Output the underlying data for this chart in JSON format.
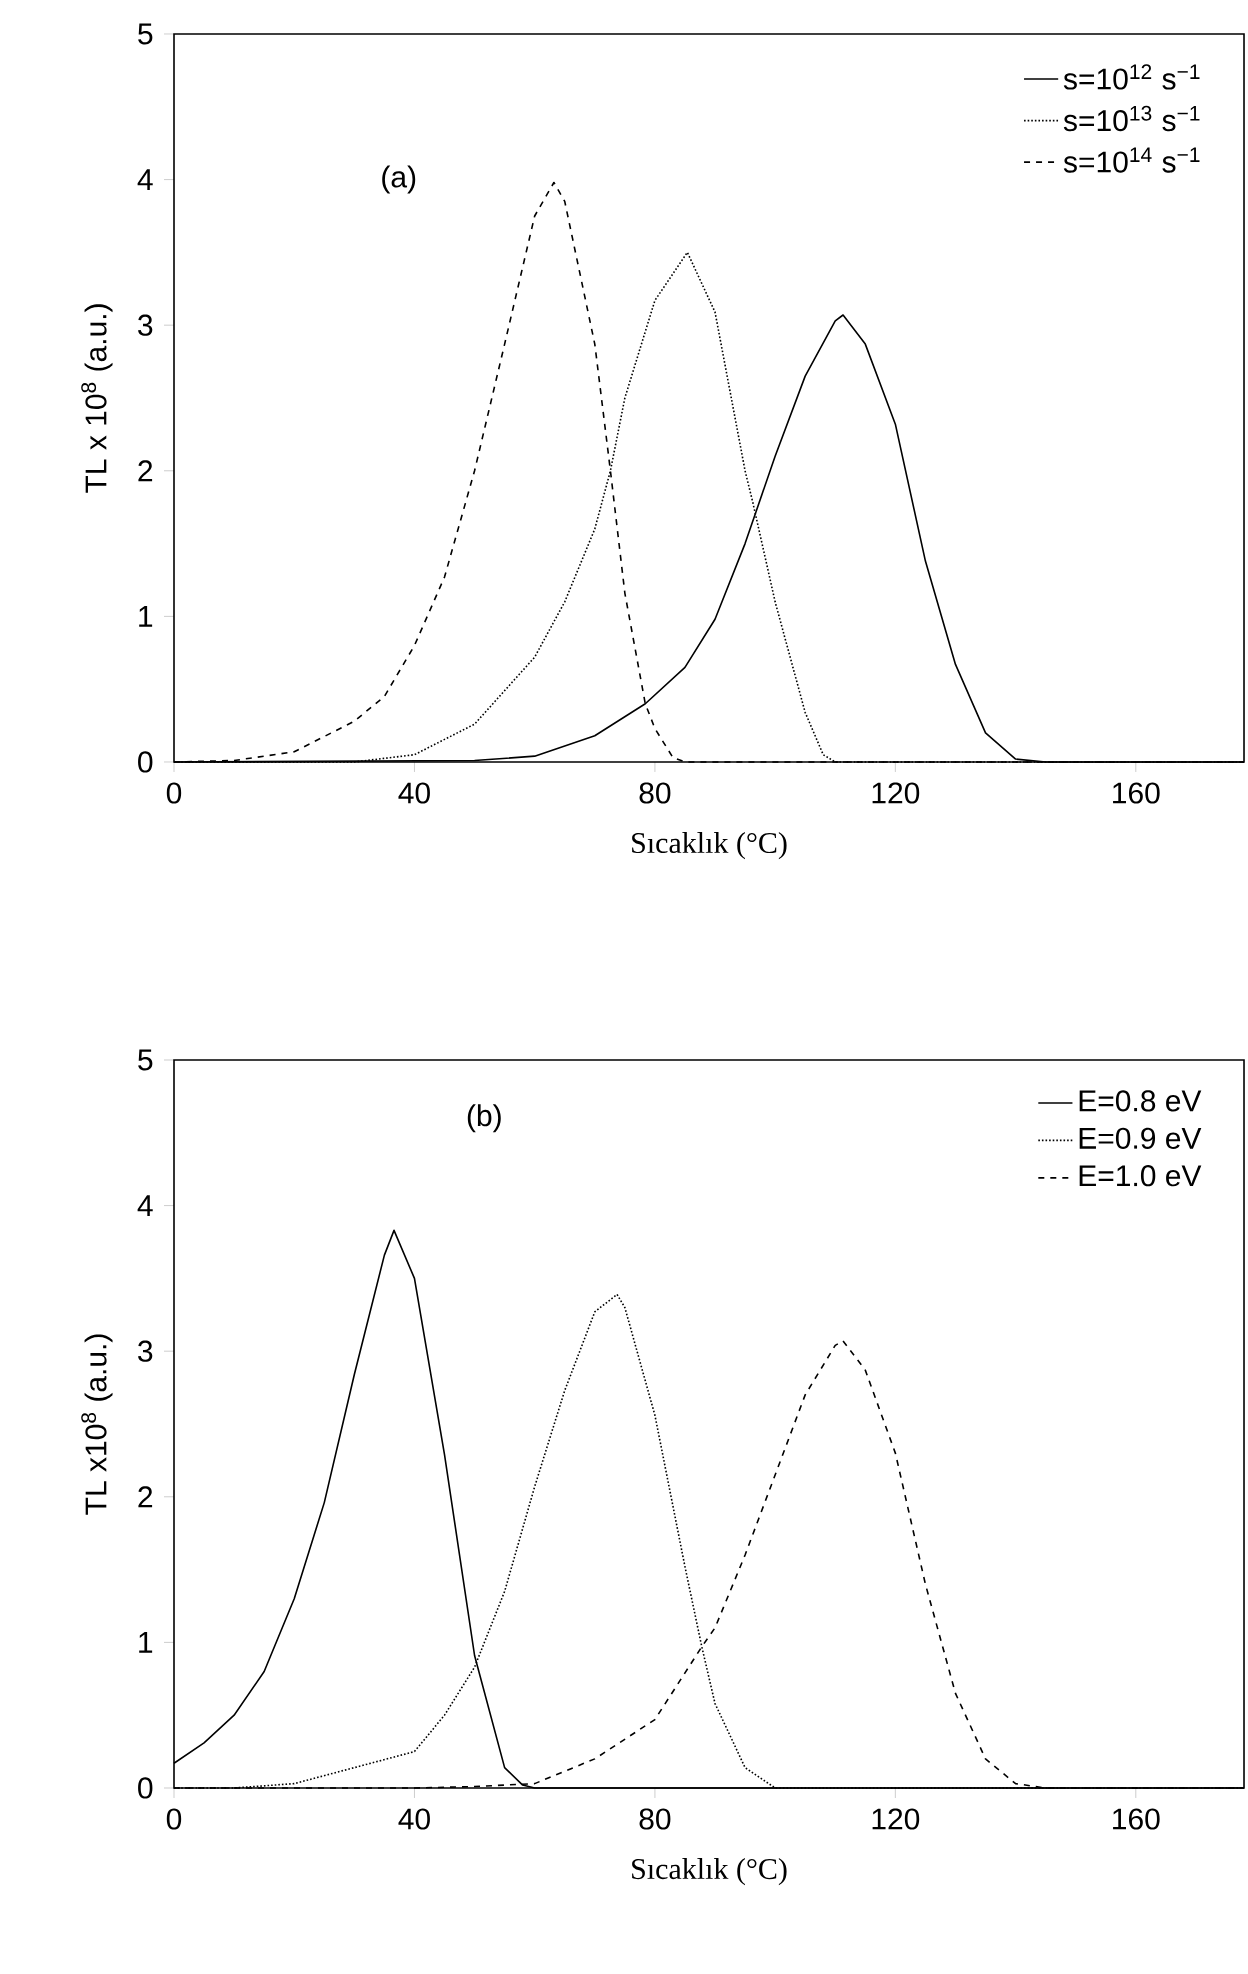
{
  "chart_data": [
    {
      "type": "line",
      "xlabel": "Sıcaklık (°C)",
      "ylabel": "TL x 10$^{8}$ (a.u.)",
      "annotations": [
        "(a)"
      ],
      "xlim": [
        0,
        178
      ],
      "ylim": [
        0,
        5
      ],
      "xticks": [
        0,
        40,
        80,
        120,
        160
      ],
      "yticks": [
        0,
        1,
        2,
        3,
        4,
        5
      ],
      "grid": false,
      "legend": "top right",
      "marker": "none",
      "series": [
        {
          "name": "s=10$^{12}$ s$^{−1}$",
          "color": "#000000",
          "line_style": "solid",
          "x": [
            0,
            50,
            60,
            70,
            78.4,
            85,
            90,
            95,
            100,
            105,
            110,
            111.3,
            115,
            120,
            125,
            130,
            135,
            140,
            145,
            178
          ],
          "values": [
            0,
            0.01,
            0.04,
            0.18,
            0.4,
            0.65,
            0.98,
            1.5,
            2.1,
            2.65,
            3.03,
            3.07,
            2.87,
            2.32,
            1.38,
            0.67,
            0.2,
            0.02,
            0,
            0
          ]
        },
        {
          "name": "s=10$^{13}$ s$^{−1}$",
          "color": "#000000",
          "line_style": "dotted",
          "x": [
            0,
            30,
            40,
            50,
            60,
            65,
            70,
            72.6,
            75,
            80,
            85.4,
            90,
            95,
            96.3,
            100,
            105,
            108,
            110,
            178
          ],
          "values": [
            0,
            0,
            0.05,
            0.26,
            0.72,
            1.1,
            1.6,
            2.0,
            2.5,
            3.17,
            3.5,
            3.09,
            2.0,
            1.78,
            1.1,
            0.34,
            0.05,
            0,
            0
          ]
        },
        {
          "name": "s=10$^{14}$ s$^{−1}$",
          "color": "#000000",
          "line_style": "dashed",
          "x": [
            0,
            10,
            20,
            30,
            35,
            40,
            45,
            50,
            55,
            60,
            63.2,
            65,
            70,
            72.6,
            75,
            78.4,
            80,
            83,
            85,
            178
          ],
          "values": [
            0,
            0.01,
            0.07,
            0.28,
            0.45,
            0.8,
            1.27,
            2.0,
            2.87,
            3.75,
            3.98,
            3.85,
            2.87,
            2.0,
            1.16,
            0.4,
            0.23,
            0.03,
            0,
            0
          ]
        }
      ]
    },
    {
      "type": "line",
      "xlabel": "Sıcaklık (°C)",
      "ylabel": "TL x10$^{8}$ (a.u.)",
      "annotations": [
        "(b)"
      ],
      "xlim": [
        0,
        178
      ],
      "ylim": [
        0,
        5
      ],
      "xticks": [
        0,
        40,
        80,
        120,
        160
      ],
      "yticks": [
        0,
        1,
        2,
        3,
        4,
        5
      ],
      "grid": false,
      "legend": "top right",
      "marker": "none",
      "series": [
        {
          "name": "E=0.8 eV",
          "color": "#000000",
          "line_style": "solid",
          "x": [
            0,
            5,
            10,
            15,
            20,
            25,
            30,
            35,
            36.6,
            40,
            45,
            50,
            55,
            58,
            60,
            178
          ],
          "values": [
            0.17,
            0.31,
            0.5,
            0.8,
            1.3,
            1.96,
            2.84,
            3.66,
            3.83,
            3.5,
            2.29,
            0.91,
            0.14,
            0.02,
            0,
            0
          ]
        },
        {
          "name": "E=0.9 eV",
          "color": "#000000",
          "line_style": "dotted",
          "x": [
            0,
            10,
            20,
            30,
            40,
            45,
            50,
            55,
            60,
            65,
            70,
            73.7,
            75,
            80,
            85,
            87.8,
            90,
            95,
            100,
            178
          ],
          "values": [
            0,
            0,
            0.03,
            0.14,
            0.25,
            0.5,
            0.83,
            1.35,
            2.07,
            2.73,
            3.27,
            3.39,
            3.3,
            2.56,
            1.52,
            0.97,
            0.58,
            0.14,
            0,
            0
          ]
        },
        {
          "name": "E=1.0 eV",
          "color": "#000000",
          "line_style": "dashed",
          "x": [
            0,
            40,
            50,
            60,
            70,
            80,
            87.8,
            90,
            95,
            100,
            105,
            110,
            111.3,
            115,
            120,
            125,
            130,
            135,
            140,
            145,
            178
          ],
          "values": [
            0,
            0,
            0.01,
            0.03,
            0.2,
            0.47,
            0.97,
            1.1,
            1.6,
            2.15,
            2.7,
            3.04,
            3.07,
            2.87,
            2.3,
            1.4,
            0.65,
            0.2,
            0.03,
            0,
            0
          ]
        }
      ]
    }
  ]
}
